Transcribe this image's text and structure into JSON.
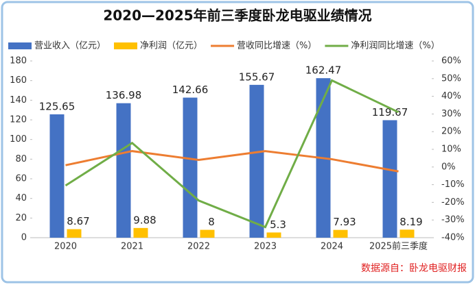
{
  "chart_data": {
    "type": "bar_line",
    "title": "2020—2025年前三季度卧龙电驱业绩情况",
    "categories": [
      "2020",
      "2021",
      "2022",
      "2023",
      "2024",
      "2025前三季度"
    ],
    "series": [
      {
        "name": "营业收入（亿元）",
        "type": "bar",
        "color": "#4472c4",
        "values": [
          125.65,
          136.98,
          142.66,
          155.67,
          162.47,
          119.67
        ]
      },
      {
        "name": "净利润（亿元）",
        "type": "bar",
        "color": "#ffc000",
        "values": [
          8.67,
          9.88,
          8,
          5.3,
          7.93,
          8.19
        ]
      },
      {
        "name": "营收同比增速（%）",
        "type": "line",
        "axis": "y2",
        "color": "#ed7d31",
        "values": [
          1,
          9,
          4,
          9,
          4.4,
          -2.5
        ]
      },
      {
        "name": "净利润同比增速（%）",
        "type": "line",
        "axis": "y2",
        "color": "#70ad47",
        "values": [
          -10.5,
          13.6,
          -19,
          -34,
          49,
          31
        ]
      }
    ],
    "ylim": [
      0,
      180
    ],
    "yticks": [
      0,
      20,
      40,
      60,
      80,
      100,
      120,
      140,
      160,
      180
    ],
    "y2lim": [
      -40,
      60
    ],
    "y2ticks": [
      {
        "value": -40,
        "label": "-40%"
      },
      {
        "value": -30,
        "label": "-30%"
      },
      {
        "value": -20,
        "label": "-20%"
      },
      {
        "value": -10,
        "label": "-10%"
      },
      {
        "value": 0,
        "label": "0%"
      },
      {
        "value": 10,
        "label": "10%"
      },
      {
        "value": 20,
        "label": "20%"
      },
      {
        "value": 30,
        "label": "30%"
      },
      {
        "value": 40,
        "label": "40%"
      },
      {
        "value": 50,
        "label": "50%"
      },
      {
        "value": 60,
        "label": "60%"
      }
    ],
    "source": "数据源自：卧龙电驱财报"
  }
}
